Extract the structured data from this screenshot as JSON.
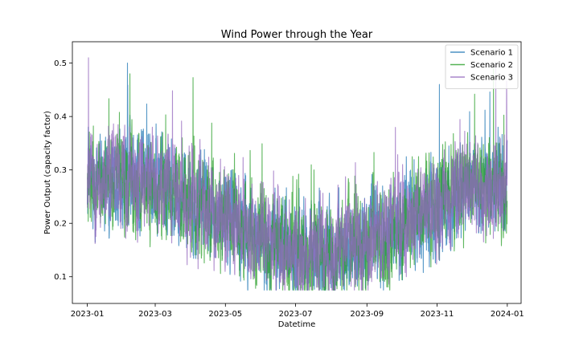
{
  "chart_data": {
    "type": "line",
    "title": "Wind Power through the Year",
    "xlabel": "Datetime",
    "ylabel": "Power Output (capacity factor)",
    "x_start": "2023-01-01",
    "x_end": "2023-12-31",
    "xlim": [
      "2022-12-19",
      "2024-01-13"
    ],
    "ylim": [
      0.05,
      0.54
    ],
    "xticks": [
      "2023-01",
      "2023-03",
      "2023-05",
      "2023-07",
      "2023-09",
      "2023-11",
      "2024-01"
    ],
    "yticks": [
      0.1,
      0.2,
      0.3,
      0.4,
      0.5
    ],
    "legend_position": "top-right",
    "grid": false,
    "series": [
      {
        "name": "Scenario 1",
        "color": "#1f77b4"
      },
      {
        "name": "Scenario 2",
        "color": "#2ca02c"
      },
      {
        "name": "Scenario 3",
        "color": "#9467bd"
      }
    ],
    "seasonal_trend": {
      "dates": [
        "2023-01-01",
        "2023-02-01",
        "2023-03-01",
        "2023-04-01",
        "2023-05-01",
        "2023-06-01",
        "2023-07-01",
        "2023-08-01",
        "2023-09-01",
        "2023-10-01",
        "2023-11-01",
        "2023-12-01",
        "2023-12-31"
      ],
      "values": [
        0.27,
        0.29,
        0.27,
        0.24,
        0.21,
        0.17,
        0.15,
        0.14,
        0.17,
        0.2,
        0.24,
        0.27,
        0.26
      ]
    },
    "notable_peaks": [
      {
        "series": "Scenario 3",
        "date": "2023-01-02",
        "value": 0.51
      },
      {
        "series": "Scenario 2",
        "date": "2023-02-07",
        "value": 0.48
      },
      {
        "series": "Scenario 1",
        "date": "2023-11-03",
        "value": 0.46
      },
      {
        "series": "Scenario 2",
        "date": "2023-12-20",
        "value": 0.49
      },
      {
        "series": "Scenario 3",
        "date": "2023-12-22",
        "value": 0.5
      }
    ]
  }
}
